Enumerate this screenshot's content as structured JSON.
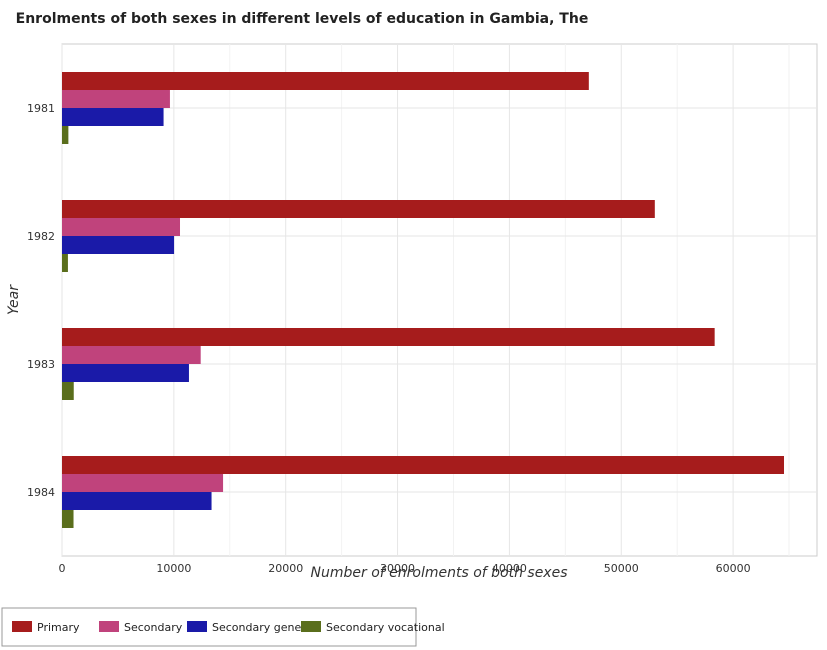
{
  "chart_data": {
    "type": "bar",
    "orientation": "horizontal",
    "title": "Enrolments of both sexes in different levels of education in Gambia, The",
    "xlabel": "Number of enrolments of both sexes",
    "ylabel": "Year",
    "categories": [
      "1981",
      "1982",
      "1983",
      "1984"
    ],
    "xlim": [
      0,
      67500
    ],
    "xticks": [
      0,
      10000,
      20000,
      30000,
      40000,
      50000,
      60000
    ],
    "xtick_labels": [
      "0",
      "10000",
      "20000",
      "30000",
      "40000",
      "50000",
      "60000"
    ],
    "grid": true,
    "legend_position": "bottom-left",
    "series": [
      {
        "name": "Primary",
        "color": "#a61c1c",
        "values": [
          47100,
          53000,
          58350,
          64550
        ]
      },
      {
        "name": "Secondary",
        "color": "#c0437c",
        "values": [
          9650,
          10550,
          12400,
          14400
        ]
      },
      {
        "name": "Secondary general",
        "color": "#1a1aa8",
        "values": [
          9080,
          10020,
          11350,
          13370
        ]
      },
      {
        "name": "Secondary vocational",
        "color": "#5a6e1c",
        "values": [
          570,
          530,
          1050,
          1030
        ]
      }
    ]
  }
}
